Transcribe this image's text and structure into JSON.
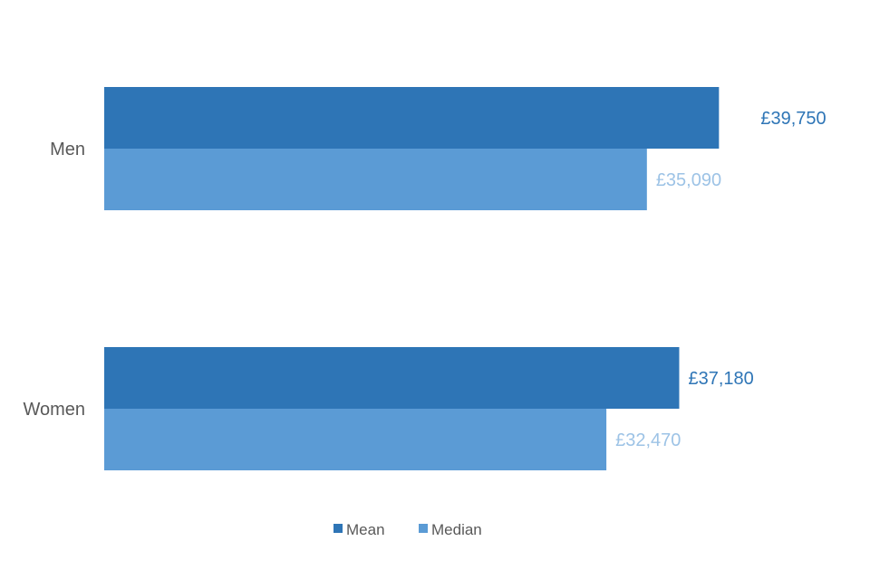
{
  "chart_data": {
    "type": "bar",
    "orientation": "horizontal",
    "categories": [
      "Men",
      "Women"
    ],
    "series": [
      {
        "name": "Mean",
        "values": [
          39750,
          37180
        ],
        "labels": [
          "£39,750",
          "£37,180"
        ],
        "color": "#2e75b6",
        "label_color": "#2e75b6"
      },
      {
        "name": "Median",
        "values": [
          35090,
          32470
        ],
        "labels": [
          "£35,090",
          "£32,470"
        ],
        "color": "#5b9bd5",
        "label_color": "#9dc3e6"
      }
    ],
    "xlim": [
      0,
      46000
    ],
    "grid": false,
    "legend": "bottom"
  }
}
